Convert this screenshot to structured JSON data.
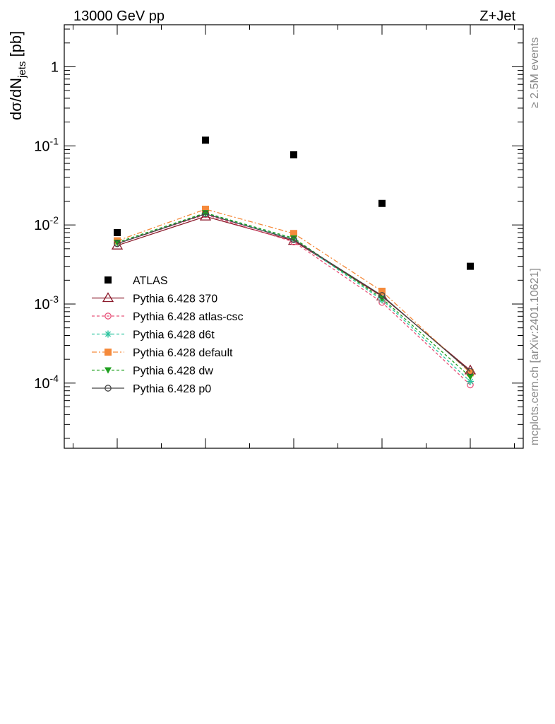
{
  "header": {
    "left": "13000 GeV pp",
    "right": "Z+Jet"
  },
  "side": {
    "events": "≥ 2.5M events",
    "source": "mcplots.cern.ch [arXiv:2401.10621]"
  },
  "chart_data": {
    "type": "scatter",
    "ylabel": "dσ/dN_jets [pb]",
    "yscale": "log",
    "ylim": [
      1.5e-05,
      3.4
    ],
    "xlim": [
      0.4,
      5.6
    ],
    "x": [
      1,
      2,
      3,
      4,
      5
    ],
    "ytick_labels": [
      "1",
      "10^-1",
      "10^-2",
      "10^-3",
      "10^-4"
    ],
    "legend_position": "left-middle",
    "series": [
      {
        "name": "ATLAS",
        "color": "#000000",
        "marker": "square",
        "values": [
          0.008,
          0.118,
          0.077,
          0.0187,
          0.003
        ]
      },
      {
        "name": "Pythia 6.428 370",
        "color": "#8b1a2b",
        "marker": "triangle-open",
        "line": "solid",
        "values": [
          0.0055,
          0.0128,
          0.0063,
          0.00125,
          0.000145
        ]
      },
      {
        "name": "Pythia 6.428 atlas-csc",
        "color": "#e8537a",
        "marker": "circle-open",
        "line": "dashed",
        "values": [
          0.0058,
          0.0135,
          0.0061,
          0.00105,
          9.5e-05
        ]
      },
      {
        "name": "Pythia 6.428 d6t",
        "color": "#2fc4a0",
        "marker": "star",
        "line": "dashed",
        "values": [
          0.006,
          0.014,
          0.0066,
          0.00113,
          0.000105
        ]
      },
      {
        "name": "Pythia 6.428 default",
        "color": "#f58a3b",
        "marker": "square",
        "line": "dashdot",
        "values": [
          0.0063,
          0.0158,
          0.0078,
          0.00145,
          0.000135
        ]
      },
      {
        "name": "Pythia 6.428 dw",
        "color": "#1fa01f",
        "marker": "triangle-down",
        "line": "dashed",
        "values": [
          0.006,
          0.0142,
          0.0068,
          0.00118,
          0.00012
        ]
      },
      {
        "name": "Pythia 6.428 p0",
        "color": "#444444",
        "marker": "circle-open",
        "line": "solid",
        "values": [
          0.0058,
          0.0138,
          0.0065,
          0.00128,
          0.00014
        ]
      }
    ]
  }
}
